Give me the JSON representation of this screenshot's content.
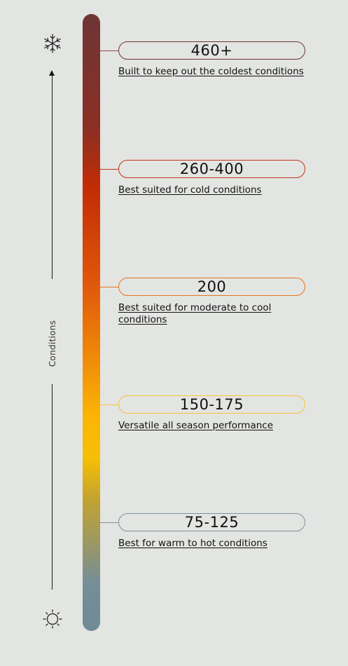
{
  "axis": {
    "label": "Conditions",
    "top_icon": "snowflake-icon",
    "bottom_icon": "sun-icon"
  },
  "colors": {
    "background": "#e3e5e2",
    "tier_460": "#6e3535",
    "tier_260": "#c0341a",
    "tier_200": "#e8741a",
    "tier_150": "#f7c43a",
    "tier_75": "#7f93a0"
  },
  "tiers": [
    {
      "value": "460+",
      "description": "Built to keep out the coldest conditions"
    },
    {
      "value": "260-400",
      "description": "Best suited for cold conditions"
    },
    {
      "value": "200",
      "description": "Best suited for moderate to cool conditions"
    },
    {
      "value": "150-175",
      "description": "Versatile all season performance"
    },
    {
      "value": "75-125",
      "description": "Best for warm to hot conditions"
    }
  ]
}
